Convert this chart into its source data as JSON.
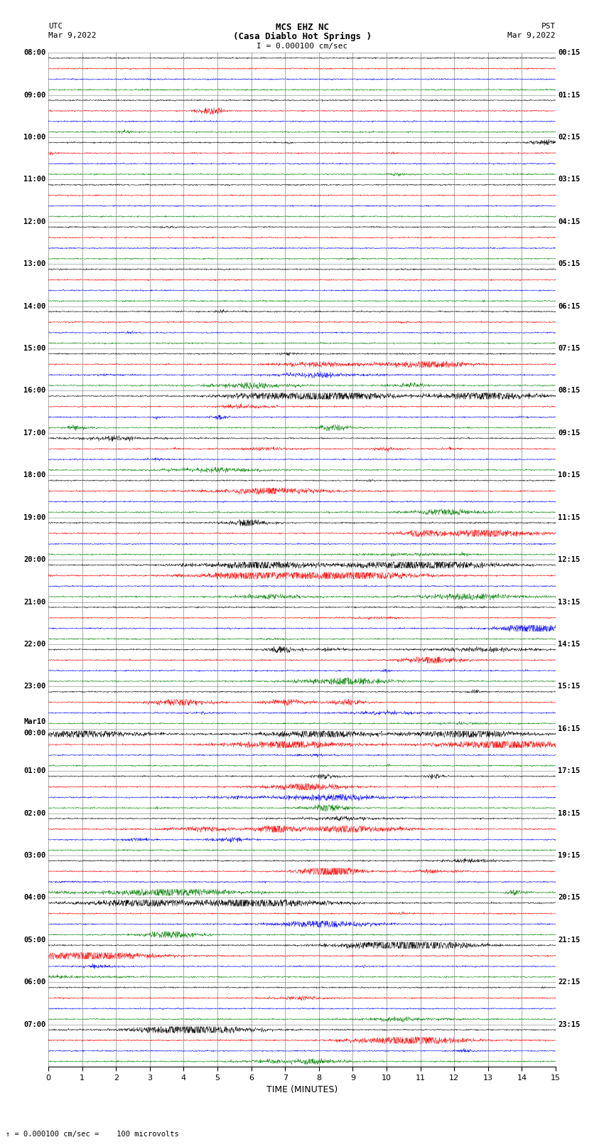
{
  "title_line1": "MCS EHZ NC",
  "title_line2": "(Casa Diablo Hot Springs )",
  "scale_label": "I = 0.000100 cm/sec",
  "bottom_label": "= 0.000100 cm/sec =    100 microvolts",
  "utc_label": "UTC",
  "utc_date": "Mar 9,2022",
  "pst_label": "PST",
  "pst_date": "Mar 9,2022",
  "xlabel": "TIME (MINUTES)",
  "left_times_utc": [
    "08:00",
    "09:00",
    "10:00",
    "11:00",
    "12:00",
    "13:00",
    "14:00",
    "15:00",
    "16:00",
    "17:00",
    "18:00",
    "19:00",
    "20:00",
    "21:00",
    "22:00",
    "23:00",
    "Mar10\n00:00",
    "01:00",
    "02:00",
    "03:00",
    "04:00",
    "05:00",
    "06:00",
    "07:00"
  ],
  "right_times_pst": [
    "00:15",
    "01:15",
    "02:15",
    "03:15",
    "04:15",
    "05:15",
    "06:15",
    "07:15",
    "08:15",
    "09:15",
    "10:15",
    "11:15",
    "12:15",
    "13:15",
    "14:15",
    "15:15",
    "16:15",
    "17:15",
    "18:15",
    "19:15",
    "20:15",
    "21:15",
    "22:15",
    "23:15"
  ],
  "trace_colors": [
    "black",
    "red",
    "blue",
    "green"
  ],
  "n_hours": 24,
  "n_traces_per_hour": 4,
  "minutes": 15,
  "bg_color": "white",
  "trace_amplitude": 0.12,
  "noise_seed": 42,
  "fig_width": 8.5,
  "fig_height": 16.13
}
